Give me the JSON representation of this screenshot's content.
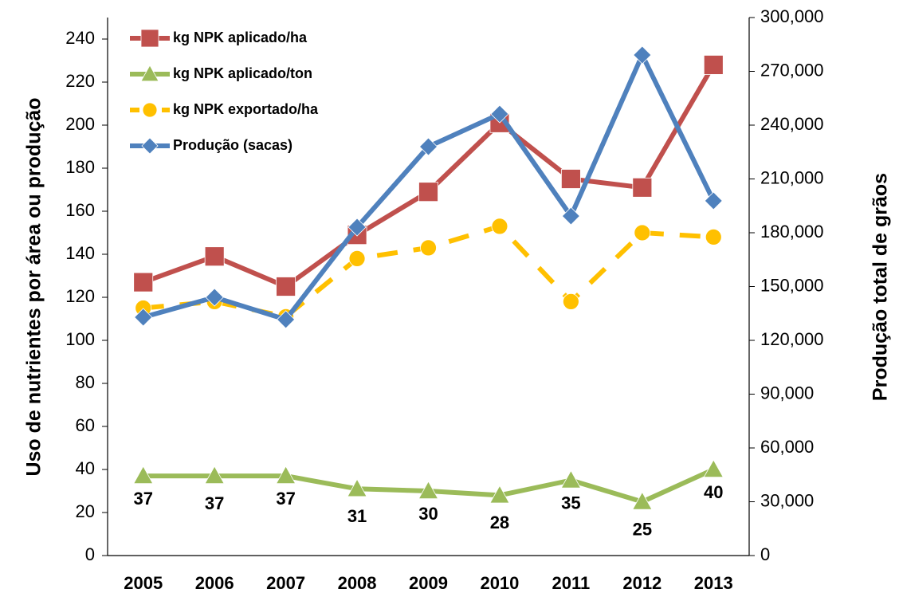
{
  "chart_data": {
    "type": "line",
    "ylabel": "Uso de nutrientes por área ou produção",
    "y2label": "Produção total de grãos",
    "categories": [
      "2005",
      "2006",
      "2007",
      "2008",
      "2009",
      "2010",
      "2011",
      "2012",
      "2013"
    ],
    "series": [
      {
        "name": "kg NPK aplicado/ha",
        "color": "#c0504d",
        "marker": "square",
        "values": [
          127,
          139,
          125,
          149,
          169,
          201,
          175,
          171,
          228
        ]
      },
      {
        "name": "kg NPK aplicado/ton",
        "color": "#9bbb59",
        "marker": "triangle",
        "values": [
          37,
          37,
          37,
          31,
          30,
          28,
          35,
          25,
          40
        ],
        "data_labels": true
      },
      {
        "name": "kg NPK exportado/ha",
        "color": "#ffc000",
        "marker": "circle",
        "dashed": true,
        "values": [
          115,
          118,
          111,
          138,
          143,
          153,
          118,
          150,
          148
        ]
      },
      {
        "name": "Produção (sacas)",
        "color": "#4f81bd",
        "marker": "diamond",
        "axis": "y2",
        "values": [
          132900,
          144000,
          131600,
          183100,
          228000,
          246200,
          189300,
          279100,
          197800
        ]
      }
    ],
    "ylim": [
      0,
      250
    ],
    "yticks": [
      0,
      20,
      40,
      60,
      80,
      100,
      120,
      140,
      160,
      180,
      200,
      220,
      240
    ],
    "y2lim": [
      0,
      300000
    ],
    "y2ticks": [
      0,
      {
        "value": 30000,
        "label": "30,000"
      },
      {
        "value": 60000,
        "label": "60,000"
      },
      {
        "value": 90000,
        "label": "90,000"
      },
      {
        "value": 120000,
        "label": "120,000"
      },
      {
        "value": 150000,
        "label": "150,000"
      },
      {
        "value": 180000,
        "label": "180,000"
      },
      {
        "value": 210000,
        "label": "210,000"
      },
      {
        "value": 240000,
        "label": "240,000"
      },
      {
        "value": 270000,
        "label": "270,000"
      },
      {
        "value": 300000,
        "label": "300,000"
      }
    ],
    "legend": "upper left"
  }
}
